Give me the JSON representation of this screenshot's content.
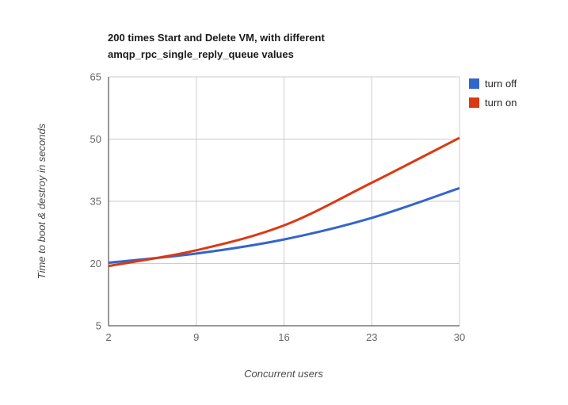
{
  "header": {
    "title_line1": "200 times Start and Delete VM, with different",
    "title_line2": "amqp_rpc_single_reply_queue values"
  },
  "chart_data": {
    "type": "line",
    "curve": "smooth",
    "title": "200 times Start and Delete VM, with different amqp_rpc_single_reply_queue values",
    "xlabel": "Concurrent users",
    "ylabel": "Time to boot & destroy in seconds",
    "x": [
      2,
      9,
      16,
      23,
      30
    ],
    "series": [
      {
        "name": "turn off",
        "color": "#3366CC",
        "values": [
          20.2,
          22.4,
          25.8,
          31.0,
          38.2
        ]
      },
      {
        "name": "turn on",
        "color": "#DC3912",
        "values": [
          19.4,
          23.2,
          29.2,
          39.5,
          50.3
        ]
      }
    ],
    "xlim": [
      2,
      30
    ],
    "ylim": [
      5,
      65
    ],
    "xticks": [
      2,
      9,
      16,
      23,
      30
    ],
    "yticks": [
      5,
      20,
      35,
      50,
      65
    ],
    "grid": true,
    "legend_position": "right",
    "colors": {
      "gridline": "#cccccc",
      "axis": "#333333",
      "tick_label": "#666666",
      "axis_title": "#4a4a4a",
      "title": "#1a1a1a"
    }
  }
}
